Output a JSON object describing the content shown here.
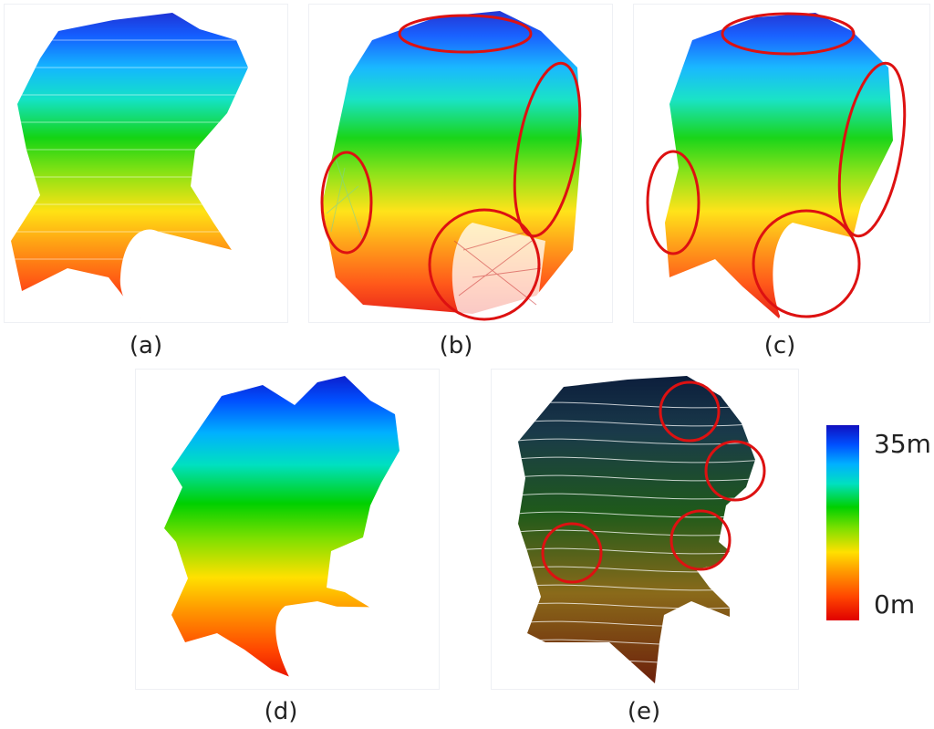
{
  "panels": [
    {
      "id": "a",
      "caption": "(a)"
    },
    {
      "id": "b",
      "caption": "(b)"
    },
    {
      "id": "c",
      "caption": "(c)"
    },
    {
      "id": "d",
      "caption": "(d)"
    },
    {
      "id": "e",
      "caption": "(e)"
    }
  ],
  "colorbar": {
    "max_label": "35m",
    "min_label": "0m",
    "colors": [
      "#e00000",
      "#ff4500",
      "#ff9900",
      "#ffe000",
      "#7fe000",
      "#00d000",
      "#00e0c0",
      "#00b0ff",
      "#0050ff",
      "#1010c0"
    ]
  },
  "highlight_color": "#dd1111"
}
